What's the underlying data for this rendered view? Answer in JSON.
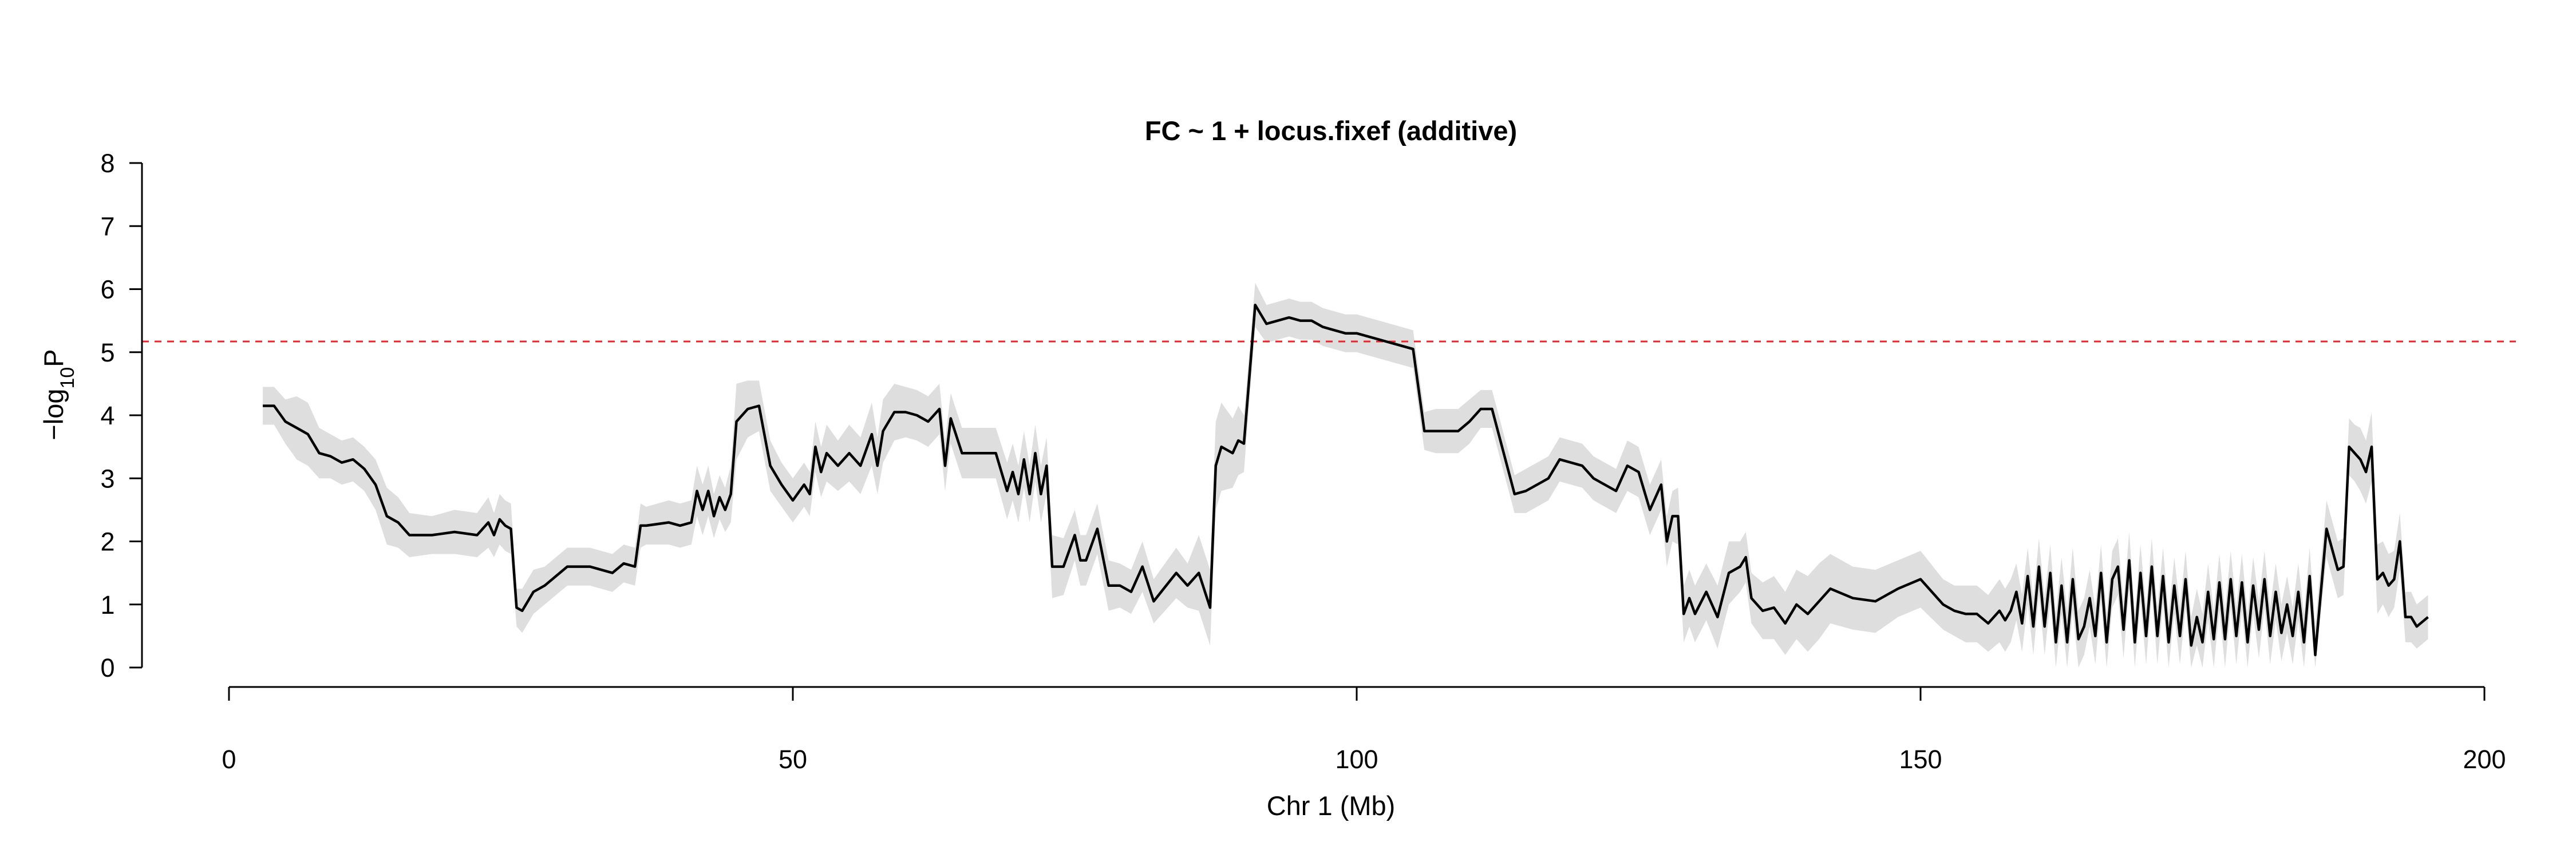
{
  "chart_data": {
    "type": "line",
    "title": "FC ~ 1 + locus.fixef (additive)",
    "xlabel": "Chr 1 (Mb)",
    "ylabel": {
      "pre": "−log",
      "sub": "10",
      "post": "P"
    },
    "xlim": [
      0,
      200
    ],
    "ylim": [
      0,
      8
    ],
    "xticks": [
      0,
      50,
      100,
      150,
      200
    ],
    "yticks": [
      0,
      1,
      2,
      3,
      4,
      5,
      6,
      7,
      8
    ],
    "grid": false,
    "colors": {
      "line": "#000000",
      "band": "#dedede",
      "threshold": "#e8242c"
    },
    "threshold": 5.17,
    "series": [
      {
        "x": [
          3,
          4,
          5,
          6,
          7,
          8,
          9,
          10,
          11,
          12,
          13,
          14,
          15,
          16,
          18,
          20,
          22,
          23,
          23.5,
          24,
          24.5,
          25,
          25.5,
          26,
          26.5,
          27,
          28,
          30,
          31,
          32,
          34,
          35,
          36,
          36.5,
          37,
          39,
          40,
          41,
          41.5,
          42,
          42.5,
          43,
          43.5,
          44,
          44.5,
          45,
          46,
          47,
          48,
          49,
          50,
          51,
          51.5,
          52,
          52.5,
          53,
          54,
          55,
          56,
          57,
          57.5,
          58,
          59,
          60,
          61,
          62,
          63,
          63.5,
          64,
          65,
          66,
          68,
          69,
          69.5,
          70,
          70.5,
          71,
          71.5,
          72,
          72.5,
          73,
          74,
          75,
          75.5,
          76,
          77,
          78,
          79,
          80,
          81,
          82,
          84,
          85,
          86,
          87,
          87.5,
          88,
          89,
          89.5,
          90,
          91,
          92,
          93,
          94,
          95,
          96,
          97,
          98,
          99,
          100,
          102,
          104,
          105,
          106,
          107,
          108,
          109,
          110,
          111,
          112,
          114,
          115,
          116,
          117,
          118,
          120,
          121,
          122,
          123,
          124,
          125,
          126,
          127,
          127.5,
          128,
          128.5,
          129,
          129.5,
          130,
          131,
          132,
          133,
          134,
          134.5,
          135,
          136,
          137,
          138,
          139,
          140,
          141,
          142,
          144,
          146,
          148,
          150,
          152,
          153,
          154,
          155,
          156,
          157,
          157.5,
          158,
          158.5,
          159,
          159.5,
          160,
          160.5,
          161,
          161.5,
          162,
          162.5,
          163,
          163.5,
          164,
          164.5,
          165,
          165.5,
          166,
          166.5,
          167,
          167.5,
          168,
          168.5,
          169,
          169.5,
          170,
          170.5,
          171,
          171.5,
          172,
          172.5,
          173,
          173.5,
          174,
          174.5,
          175,
          175.5,
          176,
          176.5,
          177,
          177.5,
          178,
          178.5,
          179,
          179.5,
          180,
          180.5,
          181,
          181.5,
          182,
          182.5,
          183,
          183.5,
          184,
          184.5,
          185,
          186,
          187,
          187.5,
          188,
          188.5,
          189,
          189.5,
          190,
          190.5,
          191,
          191.5,
          192,
          192.5,
          193,
          193.5,
          194,
          195
        ],
        "y": [
          4.15,
          4.15,
          3.9,
          3.8,
          3.7,
          3.4,
          3.35,
          3.25,
          3.3,
          3.15,
          2.9,
          2.4,
          2.3,
          2.1,
          2.1,
          2.15,
          2.1,
          2.3,
          2.1,
          2.35,
          2.25,
          2.2,
          0.95,
          0.9,
          1.05,
          1.2,
          1.3,
          1.6,
          1.6,
          1.6,
          1.5,
          1.65,
          1.6,
          2.25,
          2.25,
          2.3,
          2.25,
          2.3,
          2.8,
          2.5,
          2.8,
          2.4,
          2.7,
          2.5,
          2.75,
          3.9,
          4.1,
          4.15,
          3.2,
          2.9,
          2.65,
          2.9,
          2.75,
          3.5,
          3.1,
          3.4,
          3.2,
          3.4,
          3.2,
          3.7,
          3.2,
          3.75,
          4.05,
          4.05,
          4.0,
          3.9,
          4.1,
          3.2,
          3.95,
          3.4,
          3.4,
          3.4,
          2.8,
          3.1,
          2.75,
          3.3,
          2.75,
          3.4,
          2.75,
          3.2,
          1.6,
          1.6,
          2.1,
          1.7,
          1.7,
          2.2,
          1.3,
          1.3,
          1.2,
          1.6,
          1.05,
          1.5,
          1.3,
          1.5,
          0.95,
          3.2,
          3.5,
          3.4,
          3.6,
          3.55,
          5.75,
          5.45,
          5.5,
          5.55,
          5.5,
          5.5,
          5.4,
          5.35,
          5.3,
          5.3,
          5.2,
          5.1,
          5.05,
          3.75,
          3.75,
          3.75,
          3.75,
          3.9,
          4.1,
          4.1,
          2.75,
          2.8,
          2.9,
          3.0,
          3.3,
          3.2,
          3.0,
          2.9,
          2.8,
          3.2,
          3.1,
          2.5,
          2.9,
          2.0,
          2.4,
          2.4,
          0.85,
          1.1,
          0.85,
          1.2,
          0.8,
          1.5,
          1.6,
          1.75,
          1.1,
          0.9,
          0.95,
          0.7,
          1.0,
          0.85,
          1.05,
          1.25,
          1.1,
          1.05,
          1.25,
          1.4,
          1.0,
          0.9,
          0.85,
          0.85,
          0.7,
          0.9,
          0.75,
          0.9,
          1.2,
          0.7,
          1.45,
          0.65,
          1.6,
          0.65,
          1.5,
          0.4,
          1.3,
          0.4,
          1.4,
          0.45,
          0.65,
          1.1,
          0.5,
          1.5,
          0.4,
          1.4,
          1.6,
          0.6,
          1.7,
          0.4,
          1.5,
          0.5,
          1.6,
          0.5,
          1.45,
          0.4,
          1.3,
          0.5,
          1.4,
          0.35,
          0.8,
          0.4,
          1.2,
          0.45,
          1.35,
          0.45,
          1.4,
          0.5,
          1.35,
          0.4,
          1.3,
          0.6,
          1.4,
          0.5,
          1.2,
          0.55,
          1.0,
          0.5,
          1.2,
          0.4,
          1.45,
          0.2,
          2.2,
          1.55,
          1.6,
          3.5,
          3.4,
          3.3,
          3.1,
          3.5,
          1.4,
          1.5,
          1.3,
          1.4,
          2.0,
          0.8,
          0.8,
          0.65,
          0.8
        ],
        "band": [
          0.3,
          0.3,
          0.35,
          0.5,
          0.5,
          0.4,
          0.35,
          0.35,
          0.35,
          0.35,
          0.4,
          0.45,
          0.4,
          0.35,
          0.3,
          0.35,
          0.35,
          0.4,
          0.35,
          0.4,
          0.4,
          0.4,
          0.3,
          0.35,
          0.35,
          0.35,
          0.3,
          0.3,
          0.3,
          0.3,
          0.3,
          0.3,
          0.3,
          0.35,
          0.3,
          0.35,
          0.35,
          0.35,
          0.4,
          0.4,
          0.4,
          0.35,
          0.35,
          0.35,
          0.45,
          0.6,
          0.45,
          0.4,
          0.4,
          0.35,
          0.35,
          0.35,
          0.35,
          0.4,
          0.4,
          0.45,
          0.4,
          0.45,
          0.45,
          0.5,
          0.45,
          0.5,
          0.45,
          0.4,
          0.4,
          0.4,
          0.4,
          0.4,
          0.4,
          0.4,
          0.4,
          0.4,
          0.45,
          0.45,
          0.45,
          0.45,
          0.45,
          0.45,
          0.45,
          0.45,
          0.5,
          0.45,
          0.4,
          0.4,
          0.4,
          0.4,
          0.4,
          0.35,
          0.35,
          0.4,
          0.35,
          0.4,
          0.35,
          0.6,
          0.6,
          0.7,
          0.7,
          0.55,
          0.55,
          0.45,
          0.35,
          0.3,
          0.3,
          0.3,
          0.3,
          0.3,
          0.3,
          0.3,
          0.3,
          0.3,
          0.3,
          0.3,
          0.3,
          0.3,
          0.35,
          0.35,
          0.35,
          0.35,
          0.3,
          0.3,
          0.3,
          0.35,
          0.35,
          0.35,
          0.35,
          0.35,
          0.35,
          0.35,
          0.35,
          0.4,
          0.4,
          0.4,
          0.4,
          0.4,
          0.4,
          0.45,
          0.45,
          0.45,
          0.45,
          0.45,
          0.5,
          0.5,
          0.4,
          0.4,
          0.4,
          0.45,
          0.5,
          0.5,
          0.55,
          0.6,
          0.6,
          0.55,
          0.5,
          0.5,
          0.45,
          0.45,
          0.4,
          0.4,
          0.45,
          0.45,
          0.45,
          0.5,
          0.5,
          0.5,
          0.45,
          0.45,
          0.45,
          0.45,
          0.45,
          0.45,
          0.45,
          0.45,
          0.45,
          0.5,
          0.5,
          0.45,
          0.45,
          0.45,
          0.45,
          0.45,
          0.45,
          0.45,
          0.45,
          0.45,
          0.45,
          0.45,
          0.45,
          0.45,
          0.45,
          0.45,
          0.45,
          0.45,
          0.45,
          0.45,
          0.45,
          0.45,
          0.45,
          0.45,
          0.45,
          0.45,
          0.45,
          0.45,
          0.45,
          0.45,
          0.45,
          0.45,
          0.45,
          0.45,
          0.45,
          0.45,
          0.45,
          0.45,
          0.45,
          0.45,
          0.45,
          0.45,
          0.45,
          0.45,
          0.45,
          0.45,
          0.45,
          0.45,
          0.45,
          0.5,
          0.5,
          0.55,
          0.55,
          0.5,
          0.5,
          0.45,
          0.45,
          0.4,
          0.4,
          0.35,
          0.35,
          0.3,
          0.3,
          0.3,
          0.3,
          0.3,
          0.3
        ]
      }
    ]
  }
}
